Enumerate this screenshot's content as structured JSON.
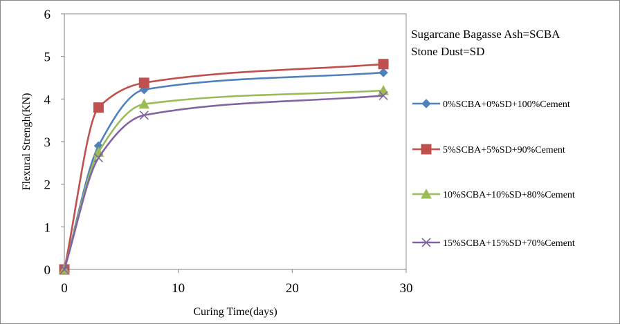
{
  "chart_data": {
    "type": "line",
    "title": "",
    "xlabel": "Curing Time(days)",
    "ylabel": "Flexural Strengh(KN)",
    "xlim": [
      0,
      30
    ],
    "ylim": [
      0,
      6
    ],
    "x_ticks": [
      0,
      10,
      20,
      30
    ],
    "y_ticks": [
      0,
      1,
      2,
      3,
      4,
      5,
      6
    ],
    "x_tick_labels": [
      "0",
      "10",
      "20",
      "30"
    ],
    "y_tick_labels": [
      "0",
      "1",
      "2",
      "3",
      "4",
      "5",
      "6"
    ],
    "grid": false,
    "legend_position": "right",
    "annotations": [
      "Sugarcane Bagasse Ash=SCBA",
      "Stone Dust=SD"
    ],
    "x": [
      0,
      3,
      7,
      28
    ],
    "series": [
      {
        "name": "0%SCBA+0%SD+100%Cement",
        "values": [
          0,
          2.9,
          4.22,
          4.62
        ],
        "color": "#4F81BD",
        "marker": "diamond"
      },
      {
        "name": "5%SCBA+5%SD+90%Cement",
        "values": [
          0,
          3.8,
          4.38,
          4.82
        ],
        "color": "#C0504D",
        "marker": "square"
      },
      {
        "name": "10%SCBA+10%SD+80%Cement",
        "values": [
          0,
          2.75,
          3.88,
          4.2
        ],
        "color": "#9BBB59",
        "marker": "triangle"
      },
      {
        "name": "15%SCBA+15%SD+70%Cement",
        "values": [
          0,
          2.62,
          3.62,
          4.08
        ],
        "color": "#8064A2",
        "marker": "x"
      }
    ]
  }
}
